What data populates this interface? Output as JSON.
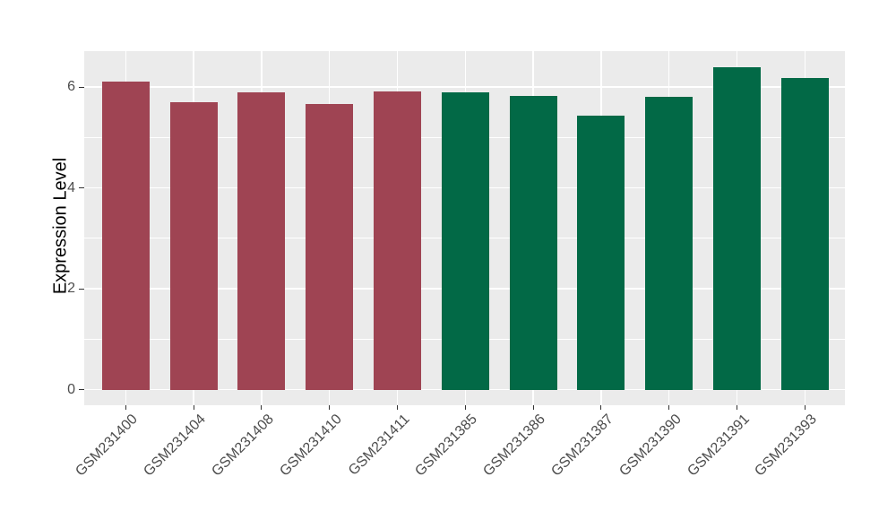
{
  "chart_data": {
    "type": "bar",
    "categories": [
      "GSM231400",
      "GSM231404",
      "GSM231408",
      "GSM231410",
      "GSM231411",
      "GSM231385",
      "GSM231386",
      "GSM231387",
      "GSM231390",
      "GSM231391",
      "GSM231393"
    ],
    "values": [
      6.1,
      5.7,
      5.89,
      5.67,
      5.91,
      5.89,
      5.83,
      5.44,
      5.81,
      6.4,
      6.18
    ],
    "bar_groups": [
      "group1",
      "group1",
      "group1",
      "group1",
      "group1",
      "group2",
      "group2",
      "group2",
      "group2",
      "group2",
      "group2"
    ],
    "group_colors": {
      "group1": "#9F4453",
      "group2": "#026946"
    },
    "title": "",
    "xlabel": "",
    "ylabel": "Expression Level",
    "ylim": [
      -0.32,
      6.71
    ],
    "yticks": [
      0,
      2,
      4,
      6
    ],
    "ytick_labels": [
      "0",
      "2",
      "4",
      "6"
    ],
    "minor_yticks": [
      1,
      3,
      5
    ],
    "grid": "on",
    "legend": "none",
    "style": {
      "panel_background": "#EBEBEB",
      "grid_color": "#FFFFFF",
      "axis_text_color": "#4D4D4D",
      "axis_title_color": "#000000",
      "tick_mark_color": "#333333",
      "figure_background": "#FFFFFF"
    }
  }
}
